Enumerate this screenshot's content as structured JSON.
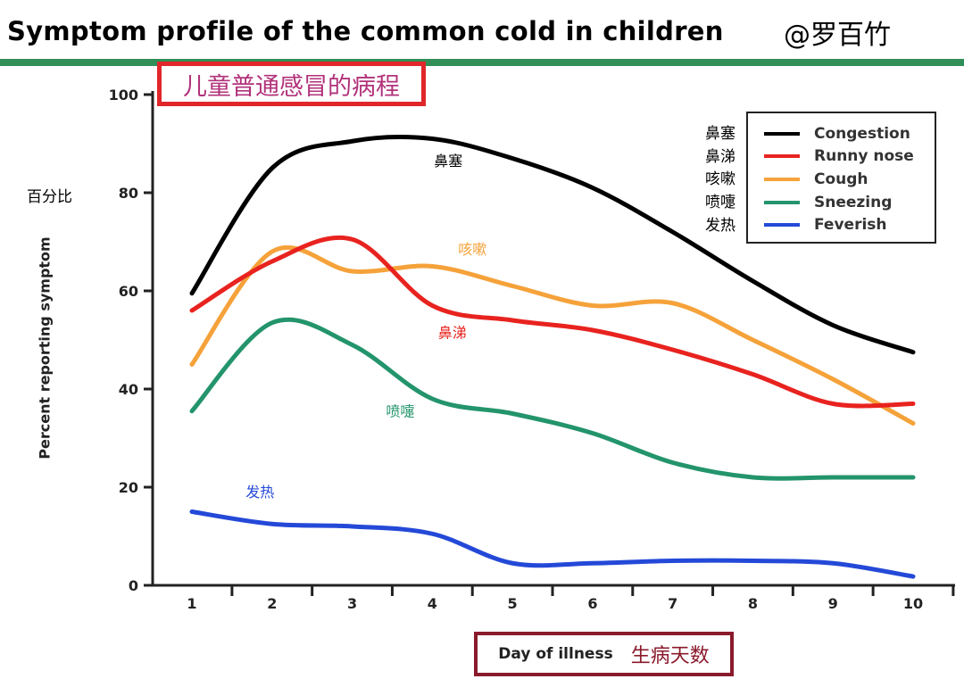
{
  "header": {
    "title": "Symptom profile of the common cold in children",
    "author": "@罗百竹",
    "chinese_title": "儿童普通感冒的病程"
  },
  "chart_data": {
    "type": "line",
    "title": "Symptom profile of the common cold in children",
    "xlabel": "Day of illness",
    "xlabel_cn": "生病天数",
    "ylabel": "Percent reporting symptom",
    "ylabel_cn": "百分比",
    "x": [
      1,
      2,
      3,
      4,
      5,
      6,
      7,
      8,
      9,
      10
    ],
    "xlim": [
      1,
      10
    ],
    "ylim": [
      0,
      100
    ],
    "yticks": [
      0,
      20,
      40,
      60,
      80,
      100
    ],
    "legend_position": "top-right",
    "series": [
      {
        "name": "Congestion",
        "name_cn": "鼻塞",
        "color": "#000000",
        "values": [
          59.5,
          85,
          90.5,
          91,
          87,
          81,
          72,
          62,
          53,
          47.5
        ],
        "annotation": {
          "text": "鼻塞",
          "x": 4.2,
          "y": 85.5
        }
      },
      {
        "name": "Runny nose",
        "name_cn": "鼻涕",
        "color": "#e8231f",
        "values": [
          56,
          66,
          70.5,
          57,
          54,
          52,
          48,
          43,
          37,
          37
        ],
        "annotation": {
          "text": "鼻涕",
          "x": 4.25,
          "y": 50.5
        }
      },
      {
        "name": "Cough",
        "name_cn": "咳嗽",
        "color": "#f5a23a",
        "values": [
          45,
          68,
          64,
          65,
          61,
          57,
          57.5,
          50,
          42,
          33
        ],
        "annotation": {
          "text": "咳嗽",
          "x": 4.5,
          "y": 67.5
        }
      },
      {
        "name": "Sneezing",
        "name_cn": "喷嚏",
        "color": "#23946b",
        "values": [
          35.5,
          53.5,
          49,
          38,
          35,
          31,
          25,
          22,
          22,
          22
        ],
        "annotation": {
          "text": "喷嚏",
          "x": 3.6,
          "y": 34.5
        }
      },
      {
        "name": "Feverish",
        "name_cn": "发热",
        "color": "#2449d8",
        "values": [
          15,
          12.5,
          12,
          10.5,
          4.5,
          4.5,
          5,
          5,
          4.5,
          1.8
        ],
        "annotation": {
          "text": "发热",
          "x": 1.85,
          "y": 18
        }
      }
    ]
  }
}
